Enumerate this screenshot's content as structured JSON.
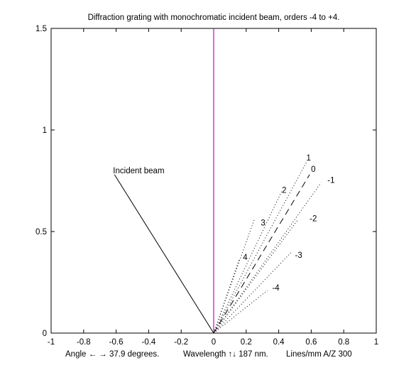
{
  "chart_data": {
    "type": "line",
    "title": "Diffraction grating with monochromatic incident beam, orders -4 to +4.",
    "xlim": [
      -1,
      1
    ],
    "ylim": [
      0,
      1.5
    ],
    "xticks": [
      -1,
      -0.8,
      -0.6,
      -0.4,
      -0.2,
      0,
      0.2,
      0.4,
      0.6,
      0.8,
      1
    ],
    "xtick_labels": [
      "-1",
      "-0.8",
      "-0.6",
      "-0.4",
      "-0.2",
      "0",
      "0.2",
      "0.4",
      "0.6",
      "0.8",
      "1"
    ],
    "yticks": [
      0,
      0.5,
      1,
      1.5
    ],
    "ytick_labels": [
      "0",
      "0.5",
      "1",
      "1.5"
    ],
    "grid": false,
    "normal_line": {
      "x": [
        0,
        0
      ],
      "y": [
        0,
        1.5
      ],
      "color": "#cc00cc"
    },
    "incident_beam": {
      "label": "Incident beam",
      "x": [
        -0.61,
        0
      ],
      "y": [
        0.78,
        0
      ],
      "color": "#000000"
    },
    "zero_order": {
      "label": "0",
      "x": [
        0,
        0.59
      ],
      "y": [
        0,
        0.78
      ],
      "style": "dashed"
    },
    "orders": [
      {
        "label": "1",
        "order": 1,
        "x": [
          0,
          0.57
        ],
        "y": [
          0,
          0.84
        ],
        "label_pos": [
          0.57,
          0.85
        ]
      },
      {
        "label": "-1",
        "order": -1,
        "x": [
          0,
          0.66
        ],
        "y": [
          0,
          0.74
        ],
        "label_pos": [
          0.7,
          0.74
        ]
      },
      {
        "label": "2",
        "order": 2,
        "x": [
          0,
          0.42
        ],
        "y": [
          0,
          0.7
        ],
        "label_pos": [
          0.42,
          0.69
        ]
      },
      {
        "label": "-2",
        "order": -2,
        "x": [
          0,
          0.52
        ],
        "y": [
          0,
          0.56
        ],
        "label_pos": [
          0.59,
          0.55
        ]
      },
      {
        "label": "3",
        "order": 3,
        "x": [
          0,
          0.25
        ],
        "y": [
          0,
          0.56
        ],
        "label_pos": [
          0.29,
          0.53
        ]
      },
      {
        "label": "-3",
        "order": -3,
        "x": [
          0,
          0.48
        ],
        "y": [
          0,
          0.4
        ],
        "label_pos": [
          0.5,
          0.37
        ]
      },
      {
        "label": "4",
        "order": 4,
        "x": [
          0,
          0.16
        ],
        "y": [
          0,
          0.37
        ],
        "label_pos": [
          0.18,
          0.36
        ]
      },
      {
        "label": "-4",
        "order": -4,
        "x": [
          0,
          0.33
        ],
        "y": [
          0,
          0.21
        ],
        "label_pos": [
          0.36,
          0.21
        ]
      }
    ]
  },
  "status": {
    "angle_text": "Angle ← → 37.9 degrees.",
    "wavelength_text": "Wavelength ↑↓ 187 nm.",
    "lines_text": "Lines/mm A/Z 300"
  }
}
